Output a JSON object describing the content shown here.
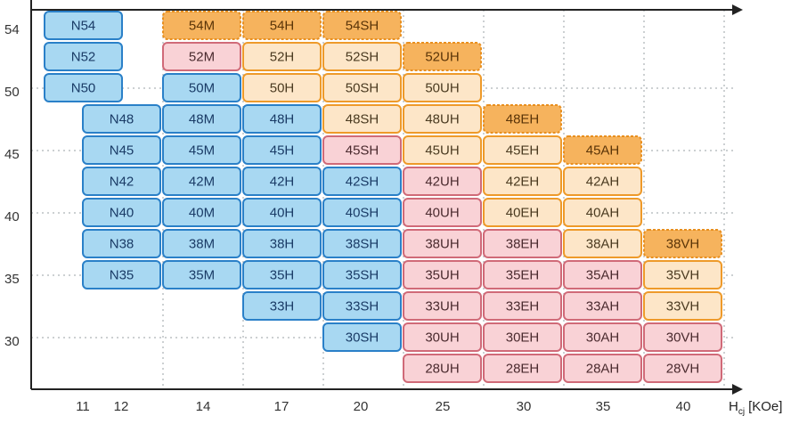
{
  "chart_data": {
    "type": "table",
    "x_axis": {
      "label": "H",
      "label_sub": "cj",
      "label_unit": "[KOe]",
      "ticks": [
        "11",
        "12",
        "14",
        "17",
        "20",
        "25",
        "30",
        "35",
        "40"
      ]
    },
    "y_axis": {
      "ticks": [
        "54",
        "50",
        "45",
        "40",
        "35",
        "30"
      ]
    },
    "grid": true,
    "columns": [
      "N",
      "M",
      "H",
      "SH",
      "UH",
      "EH",
      "AH",
      "VH"
    ],
    "rows": [
      "54",
      "52",
      "50",
      "48",
      "45",
      "42",
      "40",
      "38",
      "35",
      "33",
      "30",
      "28"
    ],
    "status_colors": {
      "blue": "#a8d8f2",
      "orange": "#f6b35d",
      "pink": "#f9d2d6",
      "cream": "#fde6c8"
    },
    "cells": [
      {
        "label": "N54",
        "col": "N",
        "row": "54",
        "status": "blue",
        "dashed": false
      },
      {
        "label": "N52",
        "col": "N",
        "row": "52",
        "status": "blue",
        "dashed": false
      },
      {
        "label": "N50",
        "col": "N",
        "row": "50",
        "status": "blue",
        "dashed": false
      },
      {
        "label": "N48",
        "col": "N",
        "row": "48",
        "status": "blue",
        "dashed": false
      },
      {
        "label": "N45",
        "col": "N",
        "row": "45",
        "status": "blue",
        "dashed": false
      },
      {
        "label": "N42",
        "col": "N",
        "row": "42",
        "status": "blue",
        "dashed": false
      },
      {
        "label": "N40",
        "col": "N",
        "row": "40",
        "status": "blue",
        "dashed": false
      },
      {
        "label": "N38",
        "col": "N",
        "row": "38",
        "status": "blue",
        "dashed": false
      },
      {
        "label": "N35",
        "col": "N",
        "row": "35",
        "status": "blue",
        "dashed": false
      },
      {
        "label": "54M",
        "col": "M",
        "row": "54",
        "status": "orange",
        "dashed": true
      },
      {
        "label": "52M",
        "col": "M",
        "row": "52",
        "status": "pink",
        "dashed": false
      },
      {
        "label": "50M",
        "col": "M",
        "row": "50",
        "status": "blue",
        "dashed": false
      },
      {
        "label": "48M",
        "col": "M",
        "row": "48",
        "status": "blue",
        "dashed": false
      },
      {
        "label": "45M",
        "col": "M",
        "row": "45",
        "status": "blue",
        "dashed": false
      },
      {
        "label": "42M",
        "col": "M",
        "row": "42",
        "status": "blue",
        "dashed": false
      },
      {
        "label": "40M",
        "col": "M",
        "row": "40",
        "status": "blue",
        "dashed": false
      },
      {
        "label": "38M",
        "col": "M",
        "row": "38",
        "status": "blue",
        "dashed": false
      },
      {
        "label": "35M",
        "col": "M",
        "row": "35",
        "status": "blue",
        "dashed": false
      },
      {
        "label": "54H",
        "col": "H",
        "row": "54",
        "status": "orange",
        "dashed": true
      },
      {
        "label": "52H",
        "col": "H",
        "row": "52",
        "status": "cream",
        "dashed": false
      },
      {
        "label": "50H",
        "col": "H",
        "row": "50",
        "status": "cream",
        "dashed": false
      },
      {
        "label": "48H",
        "col": "H",
        "row": "48",
        "status": "blue",
        "dashed": false
      },
      {
        "label": "45H",
        "col": "H",
        "row": "45",
        "status": "blue",
        "dashed": false
      },
      {
        "label": "42H",
        "col": "H",
        "row": "42",
        "status": "blue",
        "dashed": false
      },
      {
        "label": "40H",
        "col": "H",
        "row": "40",
        "status": "blue",
        "dashed": false
      },
      {
        "label": "38H",
        "col": "H",
        "row": "38",
        "status": "blue",
        "dashed": false
      },
      {
        "label": "35H",
        "col": "H",
        "row": "35",
        "status": "blue",
        "dashed": false
      },
      {
        "label": "33H",
        "col": "H",
        "row": "33",
        "status": "blue",
        "dashed": false
      },
      {
        "label": "54SH",
        "col": "SH",
        "row": "54",
        "status": "orange",
        "dashed": true
      },
      {
        "label": "52SH",
        "col": "SH",
        "row": "52",
        "status": "cream",
        "dashed": false
      },
      {
        "label": "50SH",
        "col": "SH",
        "row": "50",
        "status": "cream",
        "dashed": false
      },
      {
        "label": "48SH",
        "col": "SH",
        "row": "48",
        "status": "cream",
        "dashed": false
      },
      {
        "label": "45SH",
        "col": "SH",
        "row": "45",
        "status": "pink",
        "dashed": false
      },
      {
        "label": "42SH",
        "col": "SH",
        "row": "42",
        "status": "blue",
        "dashed": false
      },
      {
        "label": "40SH",
        "col": "SH",
        "row": "40",
        "status": "blue",
        "dashed": false
      },
      {
        "label": "38SH",
        "col": "SH",
        "row": "38",
        "status": "blue",
        "dashed": false
      },
      {
        "label": "35SH",
        "col": "SH",
        "row": "35",
        "status": "blue",
        "dashed": false
      },
      {
        "label": "33SH",
        "col": "SH",
        "row": "33",
        "status": "blue",
        "dashed": false
      },
      {
        "label": "30SH",
        "col": "SH",
        "row": "30",
        "status": "blue",
        "dashed": false
      },
      {
        "label": "52UH",
        "col": "UH",
        "row": "52",
        "status": "orange",
        "dashed": true
      },
      {
        "label": "50UH",
        "col": "UH",
        "row": "50",
        "status": "cream",
        "dashed": false
      },
      {
        "label": "48UH",
        "col": "UH",
        "row": "48",
        "status": "cream",
        "dashed": false
      },
      {
        "label": "45UH",
        "col": "UH",
        "row": "45",
        "status": "cream",
        "dashed": false
      },
      {
        "label": "42UH",
        "col": "UH",
        "row": "42",
        "status": "pink",
        "dashed": false
      },
      {
        "label": "40UH",
        "col": "UH",
        "row": "40",
        "status": "pink",
        "dashed": false
      },
      {
        "label": "38UH",
        "col": "UH",
        "row": "38",
        "status": "pink",
        "dashed": false
      },
      {
        "label": "35UH",
        "col": "UH",
        "row": "35",
        "status": "pink",
        "dashed": false
      },
      {
        "label": "33UH",
        "col": "UH",
        "row": "33",
        "status": "pink",
        "dashed": false
      },
      {
        "label": "30UH",
        "col": "UH",
        "row": "30",
        "status": "pink",
        "dashed": false
      },
      {
        "label": "28UH",
        "col": "UH",
        "row": "28",
        "status": "pink",
        "dashed": false
      },
      {
        "label": "48EH",
        "col": "EH",
        "row": "48",
        "status": "orange",
        "dashed": true
      },
      {
        "label": "45EH",
        "col": "EH",
        "row": "45",
        "status": "cream",
        "dashed": false
      },
      {
        "label": "42EH",
        "col": "EH",
        "row": "42",
        "status": "cream",
        "dashed": false
      },
      {
        "label": "40EH",
        "col": "EH",
        "row": "40",
        "status": "cream",
        "dashed": false
      },
      {
        "label": "38EH",
        "col": "EH",
        "row": "38",
        "status": "pink",
        "dashed": false
      },
      {
        "label": "35EH",
        "col": "EH",
        "row": "35",
        "status": "pink",
        "dashed": false
      },
      {
        "label": "33EH",
        "col": "EH",
        "row": "33",
        "status": "pink",
        "dashed": false
      },
      {
        "label": "30EH",
        "col": "EH",
        "row": "30",
        "status": "pink",
        "dashed": false
      },
      {
        "label": "28EH",
        "col": "EH",
        "row": "28",
        "status": "pink",
        "dashed": false
      },
      {
        "label": "45AH",
        "col": "AH",
        "row": "45",
        "status": "orange",
        "dashed": true
      },
      {
        "label": "42AH",
        "col": "AH",
        "row": "42",
        "status": "cream",
        "dashed": false
      },
      {
        "label": "40AH",
        "col": "AH",
        "row": "40",
        "status": "cream",
        "dashed": false
      },
      {
        "label": "38AH",
        "col": "AH",
        "row": "38",
        "status": "cream",
        "dashed": false
      },
      {
        "label": "35AH",
        "col": "AH",
        "row": "35",
        "status": "pink",
        "dashed": false
      },
      {
        "label": "33AH",
        "col": "AH",
        "row": "33",
        "status": "pink",
        "dashed": false
      },
      {
        "label": "30AH",
        "col": "AH",
        "row": "30",
        "status": "pink",
        "dashed": false
      },
      {
        "label": "28AH",
        "col": "AH",
        "row": "28",
        "status": "pink",
        "dashed": false
      },
      {
        "label": "38VH",
        "col": "VH",
        "row": "38",
        "status": "orange",
        "dashed": true
      },
      {
        "label": "35VH",
        "col": "VH",
        "row": "35",
        "status": "cream",
        "dashed": false
      },
      {
        "label": "33VH",
        "col": "VH",
        "row": "33",
        "status": "cream",
        "dashed": false
      },
      {
        "label": "30VH",
        "col": "VH",
        "row": "30",
        "status": "pink",
        "dashed": false
      },
      {
        "label": "28VH",
        "col": "VH",
        "row": "28",
        "status": "pink",
        "dashed": false
      }
    ]
  }
}
